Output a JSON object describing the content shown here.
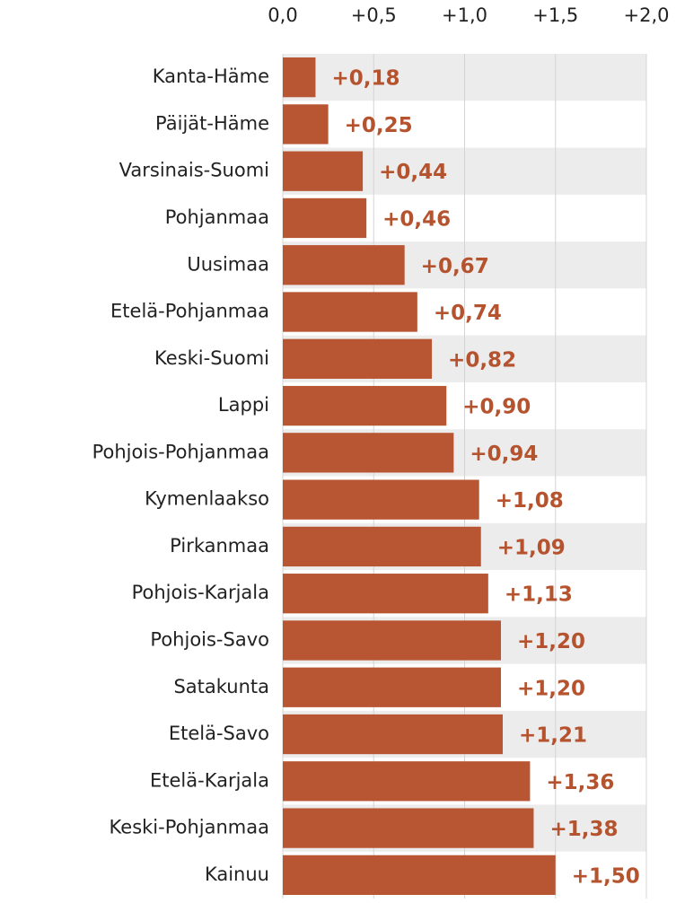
{
  "chart_data": {
    "type": "bar",
    "orientation": "horizontal",
    "categories": [
      "Kanta-Häme",
      "Päijät-Häme",
      "Varsinais-Suomi",
      "Pohjanmaa",
      "Uusimaa",
      "Etelä-Pohjanmaa",
      "Keski-Suomi",
      "Lappi",
      "Pohjois-Pohjanmaa",
      "Kymenlaakso",
      "Pirkanmaa",
      "Pohjois-Karjala",
      "Pohjois-Savo",
      "Satakunta",
      "Etelä-Savo",
      "Etelä-Karjala",
      "Keski-Pohjanmaa",
      "Kainuu"
    ],
    "values": [
      0.18,
      0.25,
      0.44,
      0.46,
      0.67,
      0.74,
      0.82,
      0.9,
      0.94,
      1.08,
      1.09,
      1.13,
      1.2,
      1.2,
      1.21,
      1.36,
      1.38,
      1.5
    ],
    "value_labels": [
      "+0,18",
      "+0,25",
      "+0,44",
      "+0,46",
      "+0,67",
      "+0,74",
      "+0,82",
      "+0,90",
      "+0,94",
      "+1,08",
      "+1,09",
      "+1,13",
      "+1,20",
      "+1,20",
      "+1,21",
      "+1,36",
      "+1,38",
      "+1,50"
    ],
    "color": "#b85533",
    "xlim": [
      0,
      2.0
    ],
    "xticks": [
      {
        "value": 0,
        "label": "0,0"
      },
      {
        "value": 0.5,
        "label": "+0,5"
      },
      {
        "value": 1.0,
        "label": "+1,0"
      },
      {
        "value": 1.5,
        "label": "+1,5"
      },
      {
        "value": 2.0,
        "label": "+2,0"
      }
    ],
    "grid": true
  }
}
